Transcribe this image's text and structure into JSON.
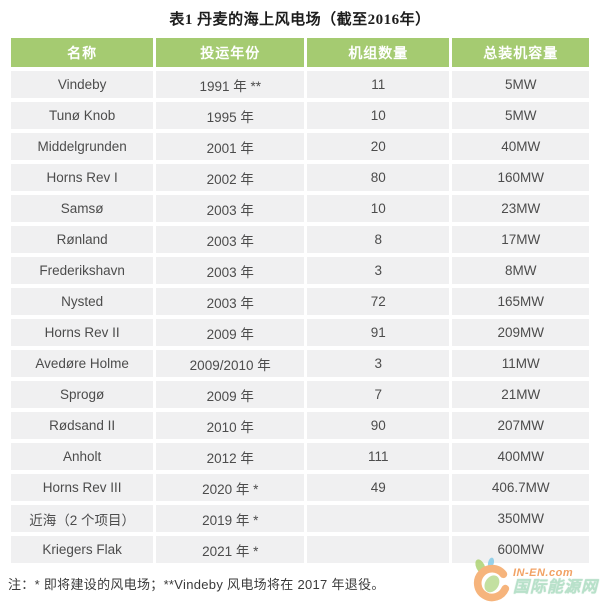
{
  "page": {
    "title": "表1 丹麦的海上风电场（截至2016年）",
    "note": "注：* 即将建设的风电场；**Vindeby 风电场将在 2017 年退役。"
  },
  "table": {
    "headers": [
      "名称",
      "投运年份",
      "机组数量",
      "总装机容量"
    ],
    "rows": [
      [
        "Vindeby",
        "1991 年 **",
        "11",
        "5MW"
      ],
      [
        "Tunø Knob",
        "1995 年",
        "10",
        "5MW"
      ],
      [
        "Middelgrunden",
        "2001 年",
        "20",
        "40MW"
      ],
      [
        "Horns Rev I",
        "2002 年",
        "80",
        "160MW"
      ],
      [
        "Samsø",
        "2003 年",
        "10",
        "23MW"
      ],
      [
        "Rønland",
        "2003 年",
        "8",
        "17MW"
      ],
      [
        "Frederikshavn",
        "2003 年",
        "3",
        "8MW"
      ],
      [
        "Nysted",
        "2003 年",
        "72",
        "165MW"
      ],
      [
        "Horns Rev II",
        "2009 年",
        "91",
        "209MW"
      ],
      [
        "Avedøre Holme",
        "2009/2010 年",
        "3",
        "11MW"
      ],
      [
        "Sprogø",
        "2009 年",
        "7",
        "21MW"
      ],
      [
        "Rødsand II",
        "2010 年",
        "90",
        "207MW"
      ],
      [
        "Anholt",
        "2012 年",
        "111",
        "400MW"
      ],
      [
        "Horns Rev III",
        "2020 年 *",
        "49",
        "406.7MW"
      ],
      [
        "近海（2 个项目）",
        "2019 年 *",
        "",
        "350MW"
      ],
      [
        "Kriegers Flak",
        "2021 年 *",
        "",
        "600MW"
      ]
    ]
  },
  "chart_data": {
    "type": "table",
    "title": "表1 丹麦的海上风电场（截至2016年）",
    "columns": [
      "名称",
      "投运年份",
      "机组数量",
      "总装机容量"
    ],
    "rows": [
      [
        "Vindeby",
        "1991 年 **",
        "11",
        "5MW"
      ],
      [
        "Tunø Knob",
        "1995 年",
        "10",
        "5MW"
      ],
      [
        "Middelgrunden",
        "2001 年",
        "20",
        "40MW"
      ],
      [
        "Horns Rev I",
        "2002 年",
        "80",
        "160MW"
      ],
      [
        "Samsø",
        "2003 年",
        "10",
        "23MW"
      ],
      [
        "Rønland",
        "2003 年",
        "8",
        "17MW"
      ],
      [
        "Frederikshavn",
        "2003 年",
        "3",
        "8MW"
      ],
      [
        "Nysted",
        "2003 年",
        "72",
        "165MW"
      ],
      [
        "Horns Rev II",
        "2009 年",
        "91",
        "209MW"
      ],
      [
        "Avedøre Holme",
        "2009/2010 年",
        "3",
        "11MW"
      ],
      [
        "Sprogø",
        "2009 年",
        "7",
        "21MW"
      ],
      [
        "Rødsand II",
        "2010 年",
        "90",
        "207MW"
      ],
      [
        "Anholt",
        "2012 年",
        "111",
        "400MW"
      ],
      [
        "Horns Rev III",
        "2020 年 *",
        "49",
        "406.7MW"
      ],
      [
        "近海（2 个项目）",
        "2019 年 *",
        "",
        "350MW"
      ],
      [
        "Kriegers Flak",
        "2021 年 *",
        "",
        "600MW"
      ]
    ],
    "note": "注：* 即将建设的风电场；**Vindeby 风电场将在 2017 年退役。"
  },
  "logo": {
    "brand": "IN-EN.com",
    "site_name": "国际能源网"
  },
  "colors": {
    "header_bg": "#a5cb71",
    "header_text": "#ffffff",
    "row_bg": "#f0f0f1",
    "cell_text": "#4c4c4c",
    "title_text": "#1c1c1c",
    "note_text": "#3a3a3a",
    "logo_orange": "#ef8b3f",
    "logo_green": "#a7dabd"
  }
}
